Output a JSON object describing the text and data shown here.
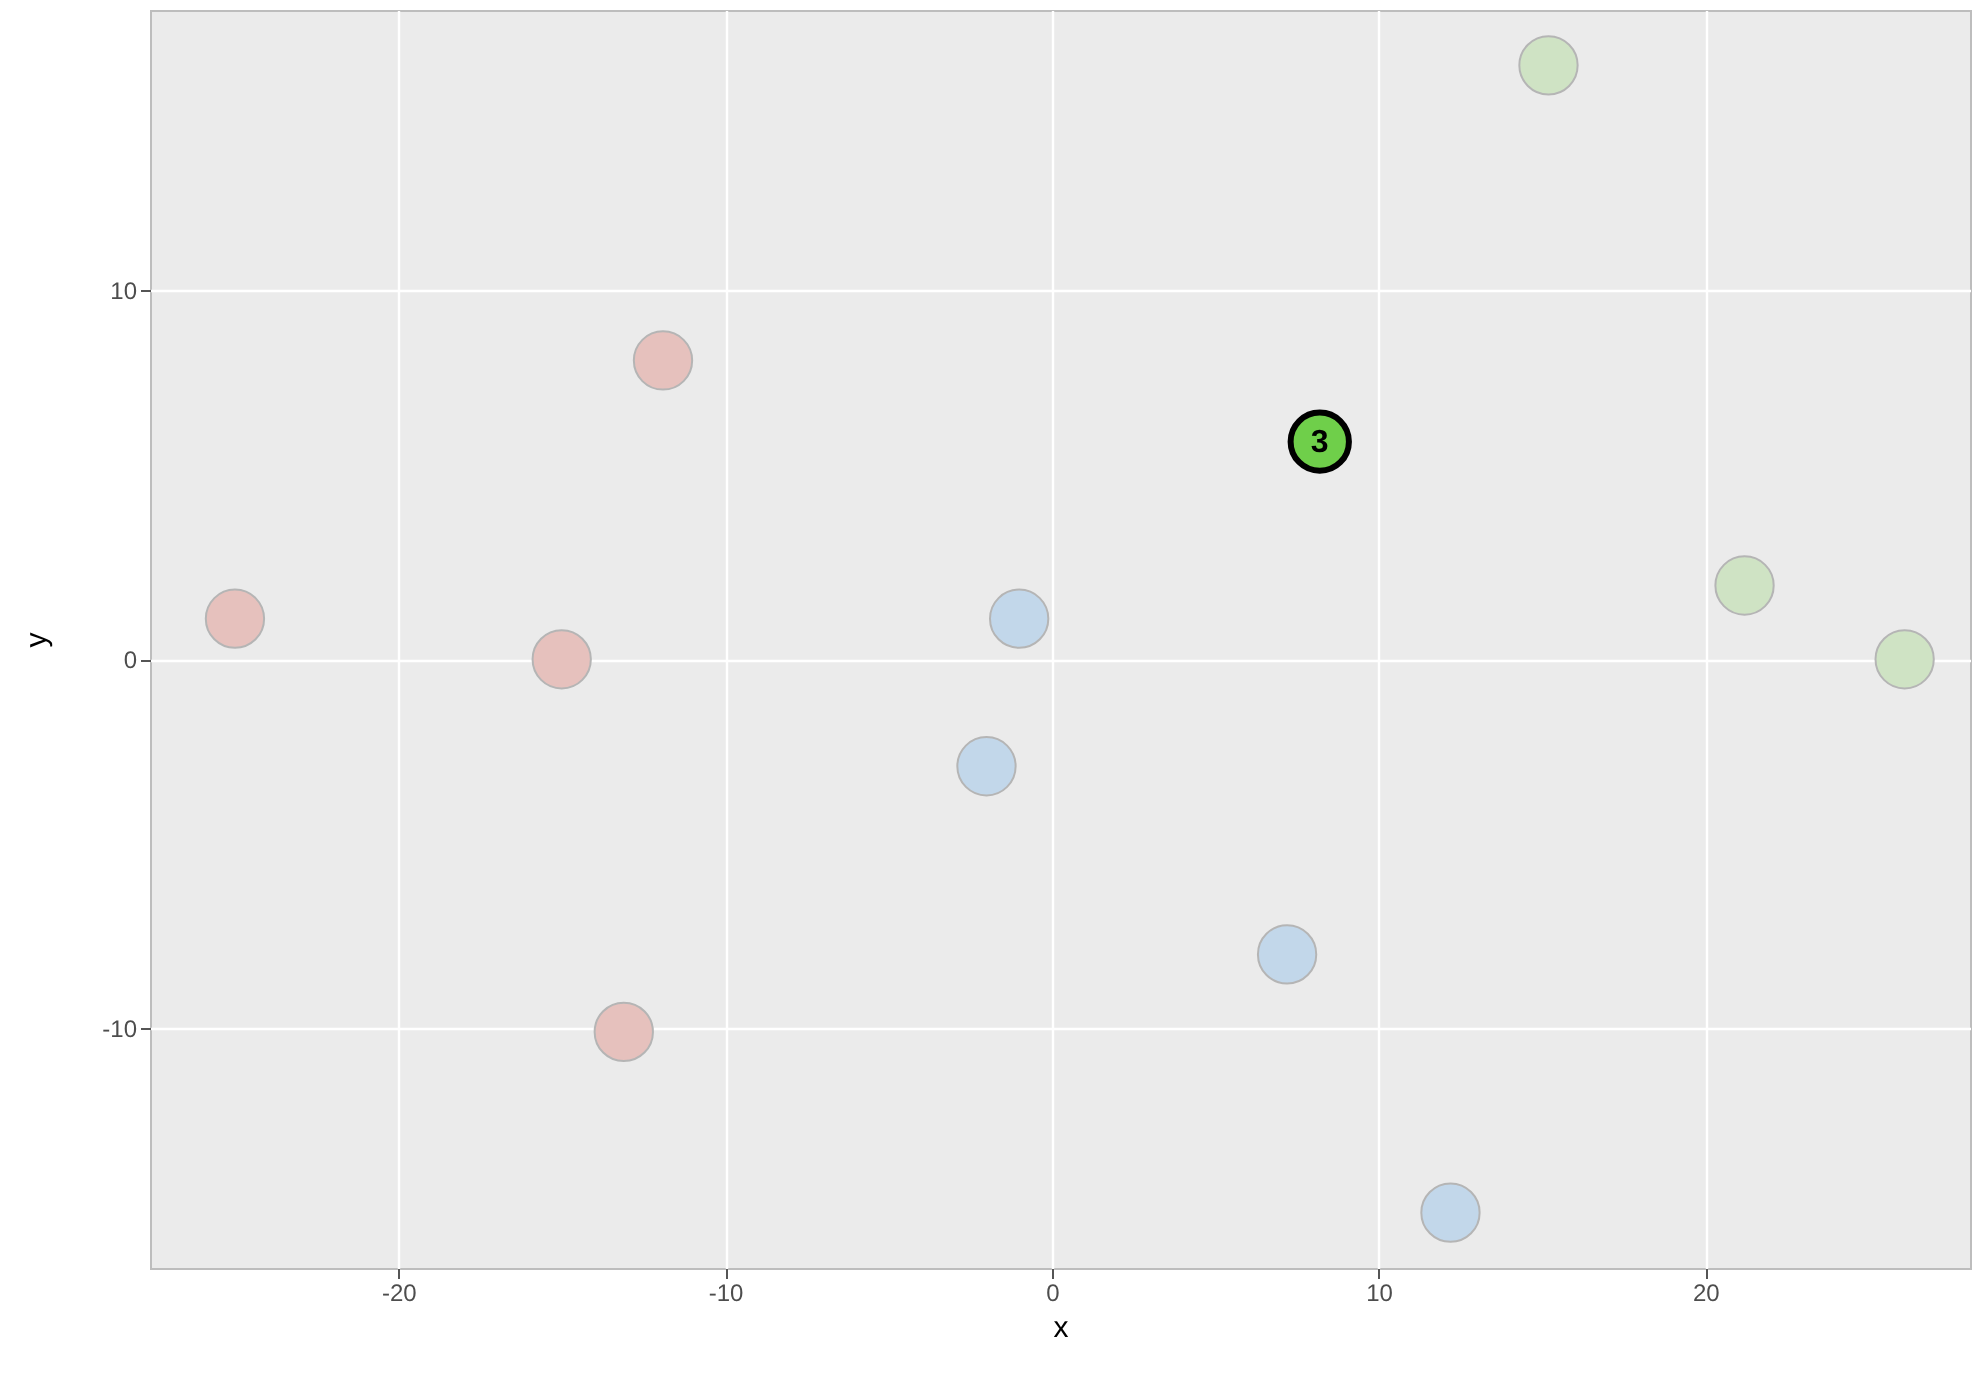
{
  "chart_data": {
    "type": "scatter",
    "xlabel": "x",
    "ylabel": "y",
    "xlim": [
      -27.6,
      28.1
    ],
    "ylim": [
      -16.5,
      17.6
    ],
    "xticks": [
      -20,
      -10,
      0,
      10,
      20
    ],
    "yticks": [
      -10,
      0,
      10
    ],
    "grid": true,
    "series": [
      {
        "color": "#e6c1bd",
        "x": [
          -25.0,
          -15.0,
          -11.9,
          -13.1
        ],
        "values": [
          1.1,
          0.0,
          8.1,
          -10.1
        ]
      },
      {
        "color": "#c2d7ea",
        "x": [
          -1.0,
          -2.0,
          7.2,
          12.2
        ],
        "values": [
          1.1,
          -2.9,
          -8.0,
          -15.0
        ]
      },
      {
        "color": "#cfe3c4",
        "x": [
          15.2,
          21.2,
          26.1
        ],
        "values": [
          16.1,
          2.0,
          0.0
        ]
      },
      {
        "color": "#6fcf4a",
        "x": [
          8.2
        ],
        "values": [
          5.9
        ]
      }
    ],
    "annotations": [
      {
        "text": "3",
        "x": 8.2,
        "y": 5.9
      }
    ]
  }
}
